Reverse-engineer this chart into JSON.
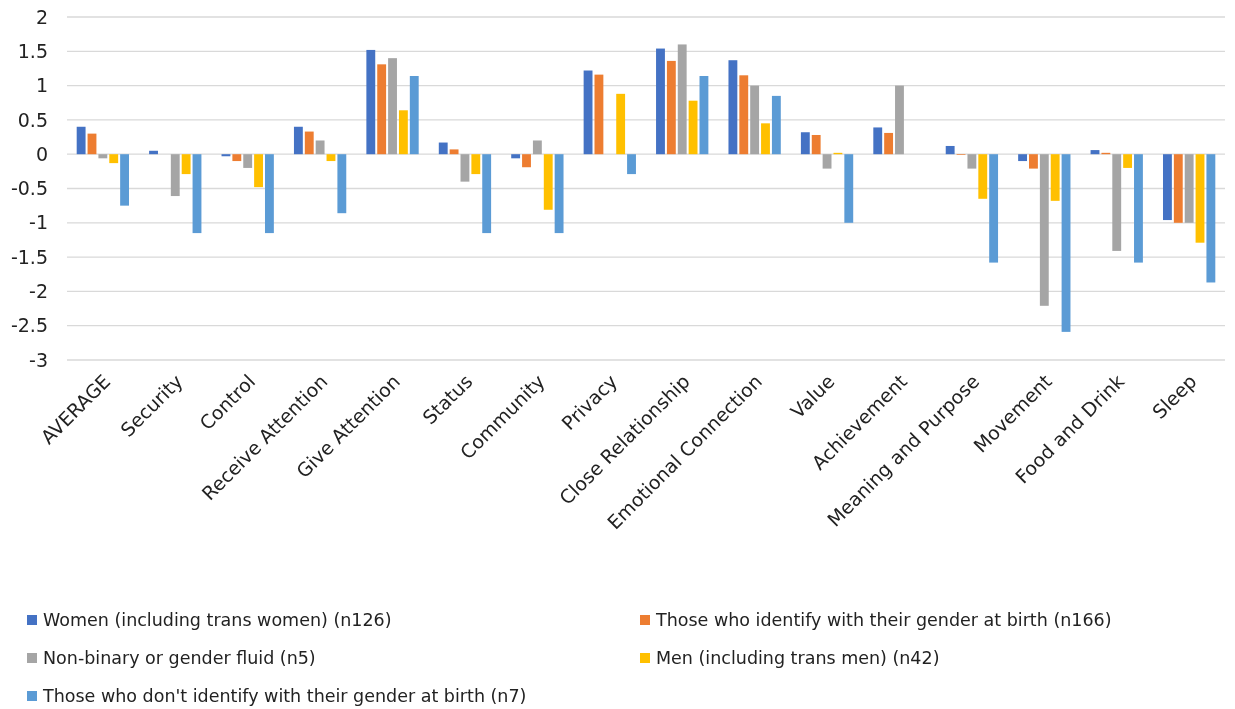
{
  "chart_data": {
    "type": "bar",
    "categories": [
      "AVERAGE",
      "Security",
      "Control",
      "Receive Attention",
      "Give Attention",
      "Status",
      "Community",
      "Privacy",
      "Close Relationship",
      "Emotional Connection",
      "Value",
      "Achievement",
      "Meaning and Purpose",
      "Movement",
      "Food and Drink",
      "Sleep"
    ],
    "series": [
      {
        "name": "Women (including trans women) (n126)",
        "color": "#4472c4",
        "values": [
          0.4,
          0.05,
          -0.03,
          0.4,
          1.52,
          0.17,
          -0.06,
          1.22,
          1.54,
          1.37,
          0.32,
          0.39,
          0.12,
          -0.1,
          0.06,
          -0.96
        ]
      },
      {
        "name": "Those who identify with their gender at birth (n166)",
        "color": "#ed7d31",
        "values": [
          0.3,
          0,
          -0.1,
          0.33,
          1.31,
          0.07,
          -0.19,
          1.16,
          1.36,
          1.15,
          0.28,
          0.31,
          -0.01,
          -0.21,
          0.02,
          -1.0
        ]
      },
      {
        "name": "Non-binary or gender fluid (n5)",
        "color": "#a5a5a5",
        "values": [
          -0.06,
          -0.61,
          -0.2,
          0.2,
          1.4,
          -0.4,
          0.2,
          0,
          1.6,
          1.0,
          -0.21,
          1.0,
          -0.21,
          -2.21,
          -1.41,
          -1.0
        ]
      },
      {
        "name": "Men (including trans men) (n42)",
        "color": "#ffc000",
        "values": [
          -0.13,
          -0.29,
          -0.48,
          -0.1,
          0.64,
          -0.29,
          -0.81,
          0.88,
          0.78,
          0.45,
          0.02,
          0,
          -0.65,
          -0.68,
          -0.2,
          -1.29
        ]
      },
      {
        "name": "Those who don't identify with their gender at birth (n7)",
        "color": "#5b9bd5",
        "values": [
          -0.75,
          -1.15,
          -1.15,
          -0.86,
          1.14,
          -1.15,
          -1.15,
          -0.29,
          1.14,
          0.85,
          -1.0,
          0,
          -1.58,
          -2.59,
          -1.58,
          -1.87
        ]
      }
    ],
    "ylim": [
      -3,
      2
    ],
    "yticks": [
      -3,
      -2.5,
      -2,
      -1.5,
      -1,
      -0.5,
      0,
      0.5,
      1,
      1.5,
      2
    ],
    "grid": "y",
    "legend": "bottom"
  }
}
